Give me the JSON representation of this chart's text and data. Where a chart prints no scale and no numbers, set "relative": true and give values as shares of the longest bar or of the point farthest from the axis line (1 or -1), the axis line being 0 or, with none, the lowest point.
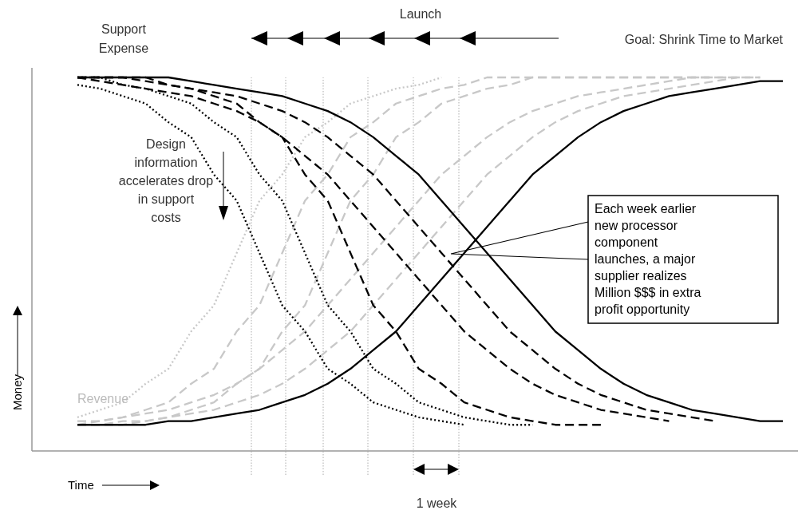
{
  "chart_data": {
    "type": "line",
    "relative": true,
    "xlabel": "Time",
    "ylabel": "Money",
    "categories": [
      null,
      null,
      null,
      null,
      null,
      null,
      null,
      null,
      null,
      null,
      null,
      null,
      null,
      null,
      null,
      null,
      null,
      null,
      null,
      null,
      null,
      null,
      null,
      null,
      null,
      null,
      null,
      null,
      null,
      null,
      null,
      null
    ],
    "series": [
      {
        "color": "#c8c8c8",
        "line_style": "dotted",
        "values": [
          0.09,
          0.11,
          0.13,
          0.18,
          0.22,
          0.32,
          0.39,
          0.53,
          0.67,
          0.74,
          0.84,
          0.88,
          0.93,
          0.95,
          0.97,
          0.98,
          1,
          null,
          null,
          null,
          null,
          null,
          null,
          null,
          null,
          null,
          null,
          null,
          null,
          null,
          null,
          null
        ]
      },
      {
        "color": "#c8c8c8",
        "line_style": "dashed",
        "values": [
          0.07,
          0.08,
          0.09,
          0.11,
          0.13,
          0.18,
          0.22,
          0.32,
          0.39,
          0.53,
          0.67,
          0.74,
          0.84,
          0.88,
          0.93,
          0.95,
          0.97,
          0.98,
          1,
          1,
          1,
          1,
          1,
          1,
          1,
          1,
          1,
          1,
          1,
          null,
          null,
          null
        ]
      },
      {
        "color": "#c8c8c8",
        "line_style": "dashed",
        "values": [
          0.07,
          0.07,
          0.07,
          0.08,
          0.09,
          0.11,
          0.13,
          0.18,
          0.22,
          0.32,
          0.39,
          0.53,
          0.67,
          0.74,
          0.84,
          0.88,
          0.93,
          0.95,
          0.97,
          0.98,
          1,
          1,
          1,
          1,
          1,
          1,
          1,
          1,
          1,
          1,
          1,
          null
        ]
      },
      {
        "color": "#c8c8c8",
        "line_style": "dashed",
        "values": [
          0.08,
          0.08,
          0.09,
          0.1,
          0.11,
          0.13,
          0.15,
          0.18,
          0.22,
          0.27,
          0.32,
          0.39,
          0.46,
          0.53,
          0.6,
          0.67,
          0.74,
          0.79,
          0.84,
          0.88,
          0.91,
          0.93,
          0.95,
          0.96,
          0.97,
          0.98,
          0.99,
          1,
          1,
          1,
          1,
          null
        ]
      },
      {
        "color": "#c8c8c8",
        "line_style": "dashed",
        "values": [
          0.07,
          0.07,
          0.08,
          0.08,
          0.09,
          0.1,
          0.11,
          0.13,
          0.15,
          0.18,
          0.22,
          0.27,
          0.32,
          0.39,
          0.46,
          0.53,
          0.6,
          0.67,
          0.74,
          0.79,
          0.84,
          0.88,
          0.91,
          0.93,
          0.95,
          0.96,
          0.97,
          0.98,
          0.99,
          1,
          null,
          null
        ]
      },
      {
        "color": "#000000",
        "line_style": "solid",
        "values": [
          0.07,
          0.07,
          0.07,
          0.07,
          0.08,
          0.08,
          0.09,
          0.1,
          0.11,
          0.13,
          0.15,
          0.18,
          0.22,
          0.27,
          0.32,
          0.39,
          0.46,
          0.53,
          0.6,
          0.67,
          0.74,
          0.79,
          0.84,
          0.88,
          0.91,
          0.93,
          0.95,
          0.96,
          0.97,
          0.98,
          0.99,
          0.99
        ]
      },
      {
        "color": "#000000",
        "line_style": "dotted",
        "values": [
          0.98,
          0.97,
          0.95,
          0.93,
          0.88,
          0.84,
          0.74,
          0.67,
          0.53,
          0.39,
          0.32,
          0.22,
          0.18,
          0.13,
          0.11,
          0.09,
          0.08,
          0.07,
          null,
          null,
          null,
          null,
          null,
          null,
          null,
          null,
          null,
          null,
          null,
          null,
          null,
          null
        ]
      },
      {
        "color": "#000000",
        "line_style": "dotted",
        "values": [
          1,
          1,
          0.98,
          0.97,
          0.95,
          0.93,
          0.88,
          0.84,
          0.74,
          0.67,
          0.53,
          0.39,
          0.32,
          0.22,
          0.18,
          0.13,
          0.11,
          0.09,
          0.08,
          0.07,
          0.07,
          null,
          null,
          null,
          null,
          null,
          null,
          null,
          null,
          null,
          null,
          null
        ]
      },
      {
        "color": "#000000",
        "line_style": "dashed",
        "values": [
          1,
          1,
          1,
          1,
          0.98,
          0.97,
          0.95,
          0.93,
          0.88,
          0.84,
          0.74,
          0.67,
          0.53,
          0.39,
          0.32,
          0.22,
          0.18,
          0.13,
          0.11,
          0.09,
          0.08,
          0.07,
          0.07,
          0.07,
          null,
          null,
          null,
          null,
          null,
          null,
          null,
          null
        ]
      },
      {
        "color": "#000000",
        "line_style": "dashed",
        "values": [
          1,
          0.99,
          0.98,
          0.97,
          0.96,
          0.95,
          0.93,
          0.91,
          0.88,
          0.84,
          0.79,
          0.74,
          0.67,
          0.6,
          0.53,
          0.46,
          0.39,
          0.32,
          0.27,
          0.22,
          0.18,
          0.15,
          0.13,
          0.11,
          0.1,
          0.09,
          0.08,
          null,
          null,
          null,
          null,
          null
        ]
      },
      {
        "color": "#000000",
        "line_style": "dashed",
        "values": [
          1,
          1,
          1,
          0.99,
          0.98,
          0.97,
          0.96,
          0.95,
          0.93,
          0.91,
          0.88,
          0.84,
          0.79,
          0.74,
          0.67,
          0.6,
          0.53,
          0.46,
          0.39,
          0.32,
          0.27,
          0.22,
          0.18,
          0.15,
          0.13,
          0.11,
          0.1,
          0.09,
          0.08,
          null,
          null,
          null
        ]
      },
      {
        "color": "#000000",
        "line_style": "solid",
        "values": [
          1,
          1,
          1,
          1,
          1,
          0.99,
          0.98,
          0.97,
          0.96,
          0.95,
          0.93,
          0.91,
          0.88,
          0.84,
          0.79,
          0.74,
          0.67,
          0.6,
          0.53,
          0.46,
          0.39,
          0.32,
          0.27,
          0.22,
          0.18,
          0.15,
          0.13,
          0.11,
          0.1,
          0.09,
          0.08,
          0.08
        ]
      }
    ],
    "annotations": [
      "Support\nExpense",
      "Revenue",
      "Launch",
      "Goal: Shrink Time to Market",
      "Design\ninformation\naccelerates drop\nin support\ncosts",
      "Each week earlier\nnew processor\ncomponent\nlaunches, a major\nsupplier realizes\nMillion $$$ in extra\nprofit opportunity",
      "1 week"
    ]
  }
}
